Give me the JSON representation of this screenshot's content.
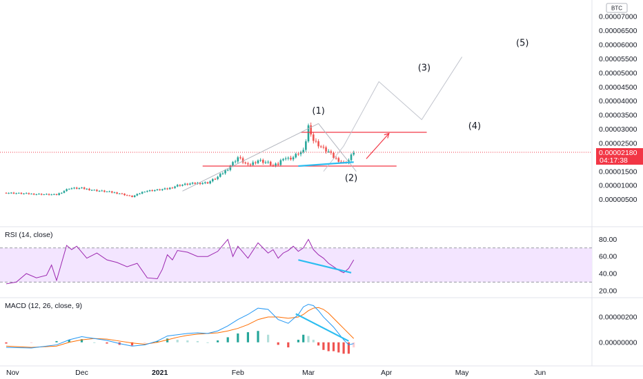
{
  "currency_badge": "BTC",
  "price_axis": {
    "ticks": [
      "0.00007000",
      "0.00006500",
      "0.00006000",
      "0.00005500",
      "0.00005000",
      "0.00004500",
      "0.00004000",
      "0.00003500",
      "0.00003000",
      "0.00002500",
      "0.00002000",
      "0.00001500",
      "0.00001000",
      "0.00000500"
    ],
    "tick_values": [
      7000,
      6500,
      6000,
      5500,
      5000,
      4500,
      4000,
      3500,
      3000,
      2500,
      2000,
      1500,
      1000,
      500
    ],
    "range": [
      0,
      7200
    ],
    "last_price": "0.00002180",
    "countdown": "04:17:38",
    "last_price_value": 2180
  },
  "time_axis": {
    "labels": [
      "Nov",
      "Dec",
      "2021",
      "Feb",
      "Mar",
      "Apr",
      "May",
      "Jun"
    ],
    "label_days": [
      0,
      30,
      61,
      92,
      120,
      151,
      181,
      212
    ]
  },
  "rsi": {
    "title": "RSI (14, close)",
    "ticks": [
      "80.00",
      "60.00",
      "40.00",
      "20.00"
    ],
    "tick_values": [
      80,
      60,
      40,
      20
    ],
    "band": [
      30,
      70
    ],
    "range": [
      15,
      90
    ]
  },
  "macd": {
    "title": "MACD (12, 26, close, 9)",
    "ticks": [
      "0.00000200",
      "0.00000000"
    ],
    "tick_values": [
      200,
      0
    ],
    "range": [
      -170,
      320
    ]
  },
  "wave_labels": [
    "(1)",
    "(2)",
    "(3)",
    "(4)",
    "(5)"
  ],
  "colors": {
    "up": "#26a69a",
    "down": "#ef5350",
    "rsi": "#9c27b0",
    "rsi_band": "#f3e5ff",
    "macd": "#2196f3",
    "signal": "#ff6d00",
    "divergence": "#2bbdf0",
    "level": "#f23645"
  },
  "chart_data": [
    {
      "type": "line",
      "panel": "price (candlestick approximation, BTC)",
      "units": "1e-8 BTC",
      "x_days": [
        0,
        10,
        20,
        25,
        30,
        35,
        40,
        45,
        50,
        55,
        60,
        64,
        68,
        72,
        76,
        80,
        84,
        88,
        92,
        96,
        100,
        104,
        106,
        108,
        110,
        112,
        114,
        116,
        118,
        119,
        120,
        121,
        122,
        124,
        126,
        128,
        130,
        132,
        134,
        136,
        138
      ],
      "close": [
        740,
        700,
        670,
        900,
        900,
        830,
        780,
        720,
        600,
        800,
        840,
        880,
        1000,
        1050,
        1080,
        1100,
        1300,
        1600,
        2000,
        1700,
        1900,
        1800,
        1700,
        1750,
        2000,
        1950,
        2000,
        2150,
        2200,
        2600,
        3100,
        2900,
        2600,
        2450,
        2300,
        2200,
        2000,
        1900,
        1800,
        1900,
        2200
      ],
      "annotations": {
        "resistance": 2890,
        "support": 1690,
        "projected_path_x_days": [
          126,
          134,
          148,
          165,
          181
        ],
        "projected_path_y": [
          1500,
          2400,
          4690,
          3340,
          5570
        ]
      }
    },
    {
      "type": "line",
      "panel": "RSI (14, close)",
      "x_days": [
        0,
        4,
        8,
        12,
        16,
        18,
        20,
        24,
        26,
        28,
        32,
        36,
        40,
        44,
        48,
        52,
        56,
        60,
        62,
        64,
        66,
        68,
        72,
        76,
        80,
        84,
        88,
        90,
        92,
        96,
        100,
        104,
        106,
        108,
        110,
        112,
        114,
        116,
        118,
        120,
        122,
        124,
        126,
        128,
        130,
        132,
        134,
        136,
        138
      ],
      "values": [
        28,
        30,
        40,
        35,
        38,
        50,
        32,
        73,
        68,
        72,
        58,
        64,
        56,
        53,
        48,
        52,
        35,
        34,
        45,
        62,
        56,
        67,
        65,
        60,
        60,
        66,
        80,
        60,
        72,
        58,
        76,
        64,
        68,
        58,
        64,
        67,
        72,
        66,
        70,
        80,
        68,
        62,
        58,
        52,
        48,
        44,
        41,
        46,
        56
      ]
    },
    {
      "type": "line",
      "panel": "MACD (12, 26, close, 9)",
      "units": "1e-8 BTC",
      "x_days": [
        0,
        10,
        20,
        25,
        30,
        35,
        40,
        45,
        50,
        55,
        60,
        64,
        68,
        72,
        76,
        80,
        84,
        88,
        92,
        96,
        100,
        104,
        108,
        112,
        116,
        118,
        120,
        122,
        124,
        126,
        128,
        130,
        132,
        134,
        136,
        138
      ],
      "series": [
        {
          "name": "MACD",
          "values": [
            -40,
            -45,
            -20,
            20,
            45,
            30,
            15,
            -10,
            -30,
            -20,
            10,
            50,
            60,
            70,
            75,
            70,
            90,
            130,
            180,
            220,
            270,
            260,
            180,
            150,
            220,
            280,
            300,
            290,
            250,
            200,
            160,
            120,
            70,
            20,
            -20,
            -10
          ]
        },
        {
          "name": "Signal",
          "values": [
            -30,
            -40,
            -30,
            0,
            20,
            30,
            25,
            10,
            -5,
            -15,
            0,
            20,
            40,
            55,
            65,
            70,
            75,
            90,
            110,
            140,
            180,
            200,
            200,
            190,
            200,
            220,
            250,
            270,
            275,
            260,
            230,
            190,
            150,
            110,
            70,
            30
          ]
        }
      ],
      "histogram": [
        -10,
        -5,
        10,
        20,
        25,
        0,
        -10,
        -20,
        -25,
        -5,
        10,
        30,
        20,
        15,
        10,
        0,
        15,
        40,
        70,
        80,
        90,
        60,
        -20,
        -40,
        20,
        60,
        50,
        20,
        -25,
        -60,
        -70,
        -70,
        -80,
        -90,
        -90,
        -40
      ]
    }
  ]
}
